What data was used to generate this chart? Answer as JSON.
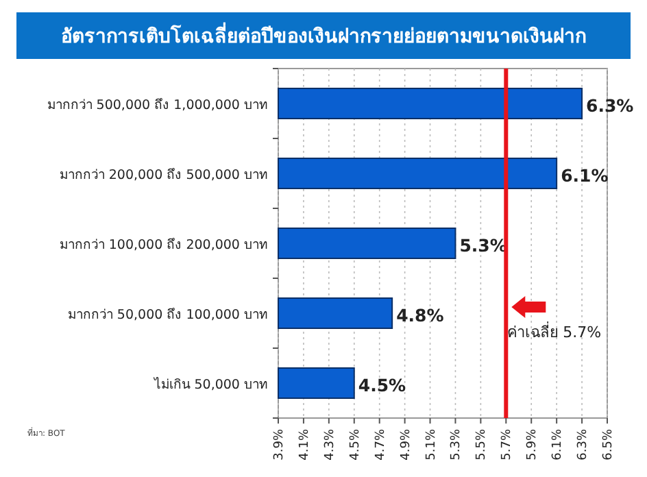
{
  "chart_data": {
    "type": "bar",
    "orientation": "horizontal",
    "title": "อัตราการเติบโตเฉลี่ยต่อปีของเงินฝากรายย่อยตามขนาดเงินฝาก",
    "categories": [
      "มากกว่า 500,000 ถึง 1,000,000 บาท",
      "มากกว่า 200,000 ถึง 500,000 บาท",
      "มากกว่า 100,000 ถึง 200,000 บาท",
      "มากกว่า 50,000 ถึง 100,000 บาท",
      "ไม่เกิน 50,000 บาท"
    ],
    "values": [
      6.3,
      6.1,
      5.3,
      4.8,
      4.5
    ],
    "value_labels": [
      "6.3%",
      "6.1%",
      "5.3%",
      "4.8%",
      "4.5%"
    ],
    "color": "#0a5fd0",
    "xlim": [
      3.9,
      6.5
    ],
    "xticks": [
      {
        "value": 3.9,
        "label": "3.9%"
      },
      {
        "value": 4.1,
        "label": "4.1%"
      },
      {
        "value": 4.3,
        "label": "4.3%"
      },
      {
        "value": 4.5,
        "label": "4.5%"
      },
      {
        "value": 4.7,
        "label": "4.7%"
      },
      {
        "value": 4.9,
        "label": "4.9%"
      },
      {
        "value": 5.1,
        "label": "5.1%"
      },
      {
        "value": 5.3,
        "label": "5.3%"
      },
      {
        "value": 5.5,
        "label": "5.5%"
      },
      {
        "value": 5.7,
        "label": "5.7%"
      },
      {
        "value": 5.9,
        "label": "5.9%"
      },
      {
        "value": 6.1,
        "label": "6.1%"
      },
      {
        "value": 6.3,
        "label": "6.3%"
      },
      {
        "value": 6.5,
        "label": "6.5%"
      }
    ],
    "grid": "x",
    "ref_lines": [
      {
        "axis": "x",
        "value": 5.7,
        "label": "ค่าเฉลี่ย 5.7%",
        "color": "#e8141b"
      }
    ],
    "annotations": [
      "ที่มา: BOT"
    ]
  }
}
